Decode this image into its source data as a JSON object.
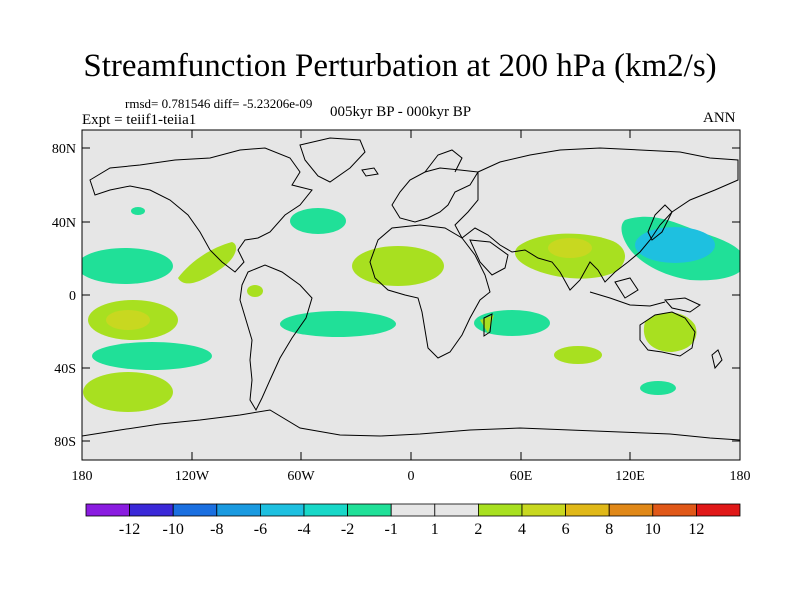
{
  "title": "Streamfunction Perturbation at 200 hPa (km2/s)",
  "stats_line": "rmsd= 0.781546 diff= -5.23206e-09",
  "experiment": "Expt = teiif1-teiia1",
  "period": "005kyr BP - 000kyr BP",
  "season": "ANN",
  "lat_ticks": [
    "80N",
    "40N",
    "0",
    "40S",
    "80S"
  ],
  "lon_ticks": [
    "180",
    "120W",
    "60W",
    "0",
    "60E",
    "120E",
    "180"
  ],
  "colorbar": {
    "labels": [
      "-12",
      "-10",
      "-8",
      "-6",
      "-4",
      "-2",
      "-1",
      "1",
      "2",
      "4",
      "6",
      "8",
      "10",
      "12"
    ],
    "colors": [
      "#8a1ce0",
      "#3a28d8",
      "#1a6fe0",
      "#1a9ae0",
      "#1ec0e0",
      "#18d8c8",
      "#20e098",
      "#e6e6e6",
      "#a8e020",
      "#c8d820",
      "#e0b818",
      "#e08818",
      "#e05818",
      "#e01818"
    ]
  },
  "chart_data": {
    "type": "heatmap",
    "title": "Streamfunction Perturbation at 200 hPa (km2/s)",
    "xlabel": "",
    "ylabel": "",
    "xlim": [
      -180,
      180
    ],
    "ylim": [
      -90,
      90
    ],
    "levels": [
      -12,
      -10,
      -8,
      -6,
      -4,
      -2,
      -1,
      1,
      2,
      4,
      6,
      8,
      10,
      12
    ],
    "features": [
      {
        "lon": 150,
        "lat": 30,
        "level": "-4 to -2",
        "sign": "negative"
      },
      {
        "lon": 145,
        "lat": 35,
        "level": "-2 to -1",
        "sign": "negative"
      },
      {
        "lon": 85,
        "lat": 25,
        "level": "2 to 4",
        "sign": "positive"
      },
      {
        "lon": 80,
        "lat": 25,
        "level": "1 to 2",
        "sign": "positive"
      },
      {
        "lon": -160,
        "lat": -12,
        "level": "2 to 4",
        "sign": "positive"
      },
      {
        "lon": -160,
        "lat": -12,
        "level": "1 to 2",
        "sign": "positive"
      },
      {
        "lon": -160,
        "lat": -53,
        "level": "1 to 2",
        "sign": "positive"
      },
      {
        "lon": -35,
        "lat": 18,
        "level": "1 to 2",
        "sign": "positive"
      },
      {
        "lon": 145,
        "lat": -25,
        "level": "1 to 2",
        "sign": "positive"
      },
      {
        "lon": 90,
        "lat": -33,
        "level": "1 to 2",
        "sign": "positive"
      },
      {
        "lon": -95,
        "lat": 13,
        "level": "1 to 2",
        "sign": "positive"
      },
      {
        "lon": -155,
        "lat": -32,
        "level": "-2 to -1",
        "sign": "negative"
      },
      {
        "lon": -160,
        "lat": 17,
        "level": "-2 to -1",
        "sign": "negative"
      },
      {
        "lon": -47,
        "lat": -15,
        "level": "-2 to -1",
        "sign": "negative"
      },
      {
        "lon": 45,
        "lat": -15,
        "level": "-2 to -1",
        "sign": "negative"
      },
      {
        "lon": -48,
        "lat": 42,
        "level": "-2 to -1",
        "sign": "negative"
      },
      {
        "lon": 140,
        "lat": -50,
        "level": "-2 to -1",
        "sign": "negative"
      }
    ]
  }
}
